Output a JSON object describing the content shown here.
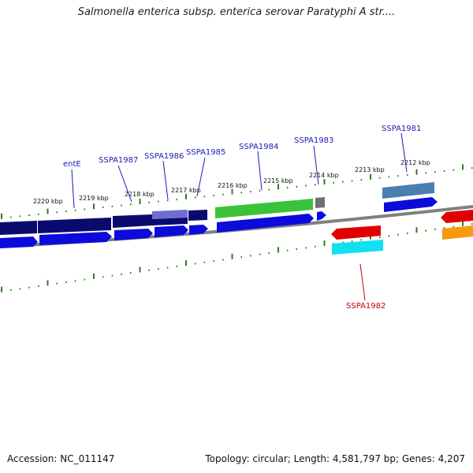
{
  "title": "Salmonella enterica subsp. enterica serovar Paratyphi A str....",
  "footer": {
    "accession": "Accession: NC_011147",
    "summary": "Topology: circular; Length: 4,581,797 bp; Genes: 4,207"
  },
  "colors": {
    "backbone": "#808080",
    "tick": "#2e7d1e",
    "forward_label": "#1a1ab4",
    "reverse_label": "#cc0000",
    "cds_dark": "#0a0a6e",
    "cds_blue": "#0b0bdc",
    "cds_green": "#3ac23a",
    "cds_gray": "#707070",
    "cds_steel": "#4a7fb0",
    "cds_red": "#e00000",
    "cds_cyan": "#10e0f0",
    "cds_orange": "#f79a10",
    "cds_lavender": "#6e6ed2"
  },
  "kbp_labels": [
    "2220 kbp",
    "2219 kbp",
    "2218 kbp",
    "2217 kbp",
    "2216 kbp",
    "2215 kbp",
    "2214 kbp",
    "2213 kbp",
    "2212 kbp"
  ],
  "gene_labels": [
    {
      "name": "entE",
      "strand": "forward"
    },
    {
      "name": "SSPA1987",
      "strand": "forward"
    },
    {
      "name": "SSPA1986",
      "strand": "forward"
    },
    {
      "name": "SSPA1985",
      "strand": "forward"
    },
    {
      "name": "SSPA1984",
      "strand": "forward"
    },
    {
      "name": "SSPA1983",
      "strand": "forward"
    },
    {
      "name": "SSPA1981",
      "strand": "forward"
    },
    {
      "name": "SSPA1982",
      "strand": "reverse"
    }
  ]
}
